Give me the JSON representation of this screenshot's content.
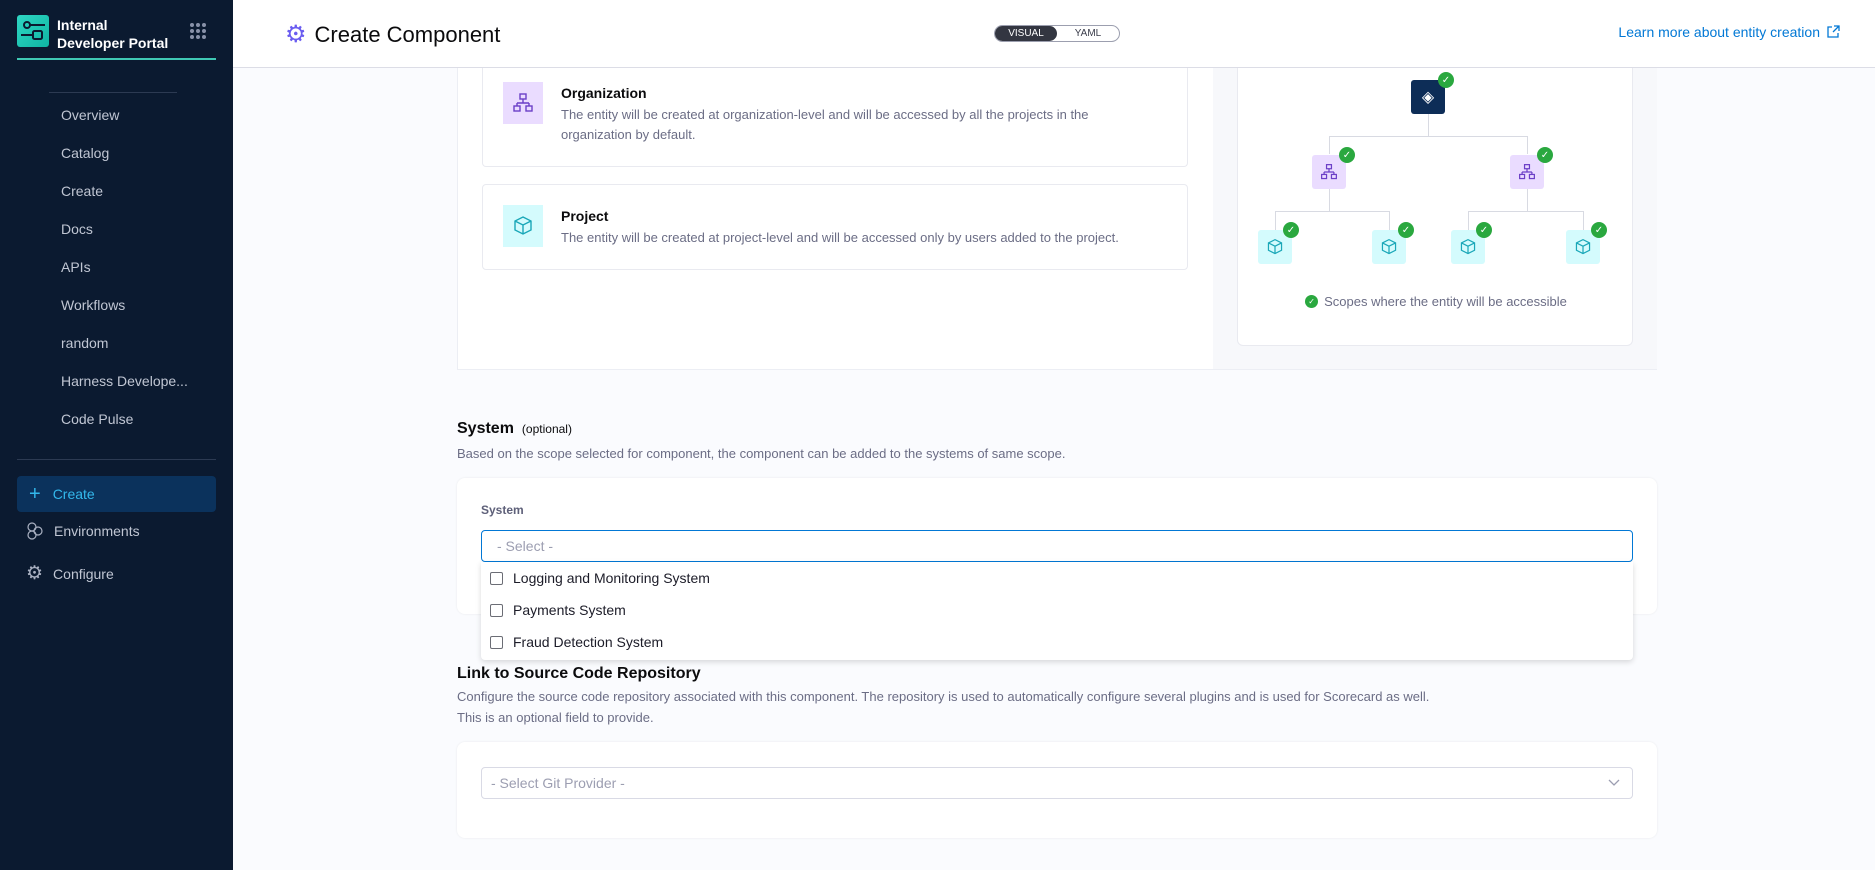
{
  "sidebar": {
    "brand": "Internal Developer Portal",
    "items": [
      {
        "label": "Overview"
      },
      {
        "label": "Catalog"
      },
      {
        "label": "Create"
      },
      {
        "label": "Docs"
      },
      {
        "label": "APIs"
      },
      {
        "label": "Workflows"
      },
      {
        "label": "random"
      },
      {
        "label": "Harness Develope..."
      },
      {
        "label": "Code Pulse"
      }
    ],
    "actions": {
      "create": "Create",
      "environments": "Environments",
      "configure": "Configure"
    }
  },
  "header": {
    "title": "Create Component",
    "toggle": {
      "visual": "VISUAL",
      "yaml": "YAML",
      "selected": "VISUAL"
    },
    "learn_more": "Learn more about entity creation"
  },
  "scope": {
    "organization": {
      "title": "Organization",
      "desc": "The entity will be created at organization-level and will be accessed by all the projects in the organization by default."
    },
    "project": {
      "title": "Project",
      "desc": "The entity will be created at project-level and will be accessed only by users added to the project."
    },
    "caption": "Scopes where the entity will be accessible"
  },
  "system": {
    "heading": "System",
    "optional": "(optional)",
    "desc": "Based on the scope selected for component, the component can be added to the systems of same scope.",
    "label": "System",
    "placeholder": "- Select -",
    "options": [
      {
        "label": "Logging and Monitoring System",
        "checked": false
      },
      {
        "label": "Payments System",
        "checked": false
      },
      {
        "label": "Fraud Detection System",
        "checked": false
      }
    ]
  },
  "repo": {
    "heading": "Link to Source Code Repository",
    "desc1": "Configure the source code repository associated with this component. The repository is used to automatically configure several plugins and is used for Scorecard as well.",
    "desc2": "This is an optional field to provide.",
    "placeholder": "- Select Git Provider -"
  },
  "colors": {
    "accent": "#0278d5",
    "sidebar": "#0b1a30",
    "success": "#2aa83f"
  }
}
